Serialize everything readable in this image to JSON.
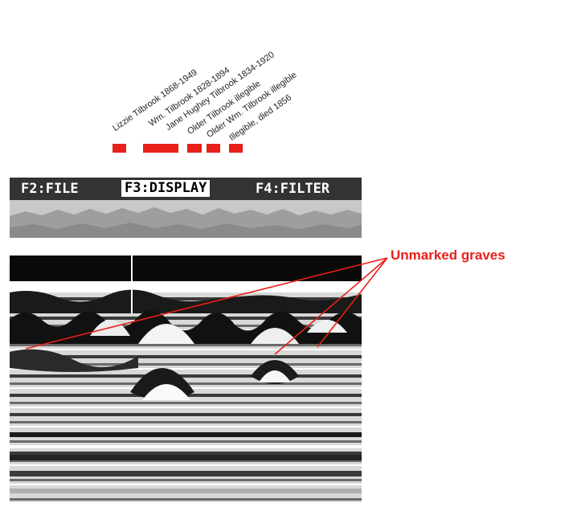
{
  "graves": [
    {
      "label": "Lizzie Tilbrook 1868-1949"
    },
    {
      "label": "Wm. Tilbrook 1828-1894"
    },
    {
      "label": "Jane Hughey Tilbrook 1834-1920"
    },
    {
      "label": "Older Tilbrook illegible"
    },
    {
      "label": "Older Wm. Tilbrook illegible"
    },
    {
      "label": "Illegible, died 1856"
    }
  ],
  "menu": {
    "file": "F2:FILE",
    "display": "F3:DISPLAY",
    "filter": "F4:FILTER"
  },
  "annotation": {
    "label": "Unmarked graves"
  },
  "colors": {
    "marker": "#e8201a",
    "annotation": "#e8201a",
    "menubar": "#333333"
  }
}
